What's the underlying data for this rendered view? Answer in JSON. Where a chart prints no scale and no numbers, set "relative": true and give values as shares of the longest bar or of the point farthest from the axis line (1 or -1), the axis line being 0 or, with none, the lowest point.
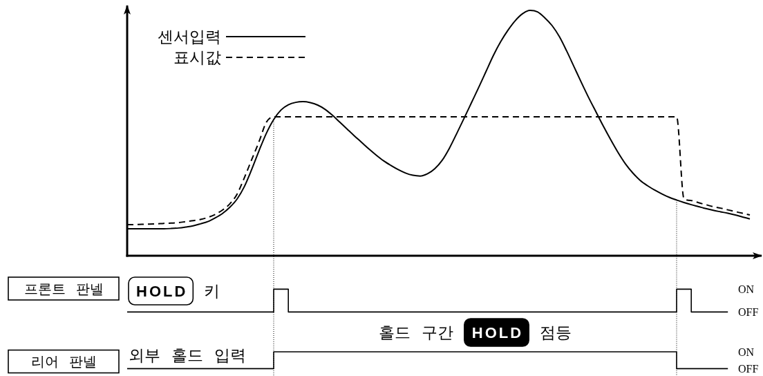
{
  "chart_data": [
    {
      "type": "line",
      "relative": true,
      "legend": "top left",
      "categories": [
        null,
        null,
        null,
        null,
        null,
        null,
        null,
        null,
        null,
        null,
        null,
        null,
        null,
        null,
        null,
        null,
        null,
        null,
        null,
        null,
        null,
        null,
        null,
        null,
        null,
        null,
        null,
        null,
        null,
        null,
        null,
        null,
        null,
        null,
        null,
        null,
        null,
        null,
        null,
        null,
        null,
        null,
        null,
        null,
        null,
        null,
        null,
        null,
        null,
        null,
        null,
        null,
        null,
        null,
        null,
        null,
        null,
        null,
        null,
        null,
        null,
        null,
        null,
        null,
        null,
        null,
        null,
        null,
        null,
        null,
        null,
        null,
        null,
        null,
        null,
        null,
        null,
        null,
        null,
        null,
        null,
        null,
        null,
        null,
        null,
        null
      ],
      "series": [
        {
          "name": "센서입력",
          "color": "#000000",
          "line_style": "solid",
          "values": [
            0.11,
            0.11,
            0.11,
            0.11,
            0.11,
            0.11,
            0.111,
            0.113,
            0.117,
            0.122,
            0.13,
            0.139,
            0.154,
            0.172,
            0.197,
            0.231,
            0.282,
            0.352,
            0.428,
            0.499,
            0.555,
            0.594,
            0.615,
            0.625,
            0.628,
            0.624,
            0.614,
            0.597,
            0.573,
            0.545,
            0.517,
            0.489,
            0.462,
            0.435,
            0.41,
            0.387,
            0.368,
            0.351,
            0.337,
            0.328,
            0.325,
            0.334,
            0.355,
            0.389,
            0.439,
            0.499,
            0.561,
            0.624,
            0.687,
            0.752,
            0.817,
            0.873,
            0.92,
            0.959,
            0.987,
            1.0,
            0.994,
            0.97,
            0.938,
            0.893,
            0.834,
            0.77,
            0.706,
            0.644,
            0.586,
            0.528,
            0.473,
            0.421,
            0.375,
            0.338,
            0.308,
            0.286,
            0.268,
            0.252,
            0.238,
            0.227,
            0.217,
            0.208,
            0.2,
            0.192,
            0.185,
            0.179,
            0.173,
            0.166,
            0.158,
            0.15
          ]
        },
        {
          "name": "표시값",
          "color": "#000000",
          "line_style": "dashed",
          "values": [
            0.127,
            0.127,
            0.128,
            0.129,
            0.13,
            0.132,
            0.133,
            0.135,
            0.139,
            0.143,
            0.148,
            0.156,
            0.168,
            0.186,
            0.211,
            0.251,
            0.318,
            0.392,
            0.465,
            0.544,
            0.566,
            0.566,
            0.566,
            0.566,
            0.566,
            0.566,
            0.566,
            0.566,
            0.566,
            0.566,
            0.566,
            0.566,
            0.566,
            0.566,
            0.566,
            0.566,
            0.566,
            0.566,
            0.566,
            0.566,
            0.566,
            0.566,
            0.566,
            0.566,
            0.566,
            0.566,
            0.566,
            0.566,
            0.566,
            0.566,
            0.566,
            0.566,
            0.566,
            0.566,
            0.566,
            0.566,
            0.566,
            0.566,
            0.566,
            0.566,
            0.566,
            0.566,
            0.566,
            0.566,
            0.566,
            0.566,
            0.566,
            0.566,
            0.566,
            0.566,
            0.566,
            0.566,
            0.566,
            0.566,
            0.566,
            0.566,
            0.233,
            0.225,
            0.216,
            0.208,
            0.2,
            0.194,
            0.187,
            0.18,
            0.173,
            0.166
          ]
        }
      ]
    },
    {
      "type": "step",
      "relative": true,
      "ylabel": "프론트 판넬",
      "categories": [
        null,
        null,
        null,
        null,
        null,
        null,
        null,
        null,
        null,
        null,
        null,
        null,
        null,
        null,
        null,
        null,
        null,
        null,
        null,
        null,
        null,
        null,
        null,
        null,
        null,
        null,
        null,
        null,
        null,
        null,
        null,
        null,
        null,
        null,
        null,
        null,
        null,
        null,
        null,
        null,
        null,
        null,
        null,
        null,
        null,
        null,
        null,
        null,
        null,
        null,
        null,
        null,
        null,
        null,
        null,
        null,
        null,
        null,
        null,
        null,
        null,
        null,
        null,
        null,
        null,
        null,
        null,
        null,
        null,
        null,
        null,
        null,
        null,
        null,
        null,
        null,
        null,
        null,
        null,
        null,
        null,
        null,
        null
      ],
      "series": [
        {
          "name": "HOLD 키",
          "color": "#000000",
          "values": [
            0,
            0,
            0,
            0,
            0,
            0,
            0,
            0,
            0,
            0,
            0,
            0,
            0,
            0,
            0,
            0,
            0,
            0,
            0,
            0,
            1,
            1,
            0,
            0,
            0,
            0,
            0,
            0,
            0,
            0,
            0,
            0,
            0,
            0,
            0,
            0,
            0,
            0,
            0,
            0,
            0,
            0,
            0,
            0,
            0,
            0,
            0,
            0,
            0,
            0,
            0,
            0,
            0,
            0,
            0,
            0,
            0,
            0,
            0,
            0,
            0,
            0,
            0,
            0,
            0,
            0,
            0,
            0,
            0,
            0,
            0,
            0,
            0,
            0,
            0,
            1,
            1,
            0,
            0,
            0,
            0,
            0,
            0
          ]
        }
      ],
      "annotations": [
        "ON",
        "OFF"
      ]
    },
    {
      "type": "step",
      "relative": true,
      "ylabel": "리어 판넬",
      "categories": [
        null,
        null,
        null,
        null,
        null,
        null,
        null,
        null,
        null,
        null,
        null,
        null,
        null,
        null,
        null,
        null,
        null,
        null,
        null,
        null,
        null,
        null,
        null,
        null,
        null,
        null,
        null,
        null,
        null,
        null,
        null,
        null,
        null,
        null,
        null,
        null,
        null,
        null,
        null,
        null,
        null,
        null,
        null,
        null,
        null,
        null,
        null,
        null,
        null,
        null,
        null,
        null,
        null,
        null,
        null,
        null,
        null,
        null,
        null,
        null,
        null,
        null,
        null,
        null,
        null,
        null,
        null,
        null,
        null,
        null,
        null,
        null,
        null,
        null,
        null,
        null,
        null,
        null,
        null,
        null,
        null,
        null,
        null
      ],
      "series": [
        {
          "name": "외부 홀드 입력",
          "color": "#000000",
          "values": [
            0,
            0,
            0,
            0,
            0,
            0,
            0,
            0,
            0,
            0,
            0,
            0,
            0,
            0,
            0,
            0,
            0,
            0,
            0,
            0,
            1,
            1,
            1,
            1,
            1,
            1,
            1,
            1,
            1,
            1,
            1,
            1,
            1,
            1,
            1,
            1,
            1,
            1,
            1,
            1,
            1,
            1,
            1,
            1,
            1,
            1,
            1,
            1,
            1,
            1,
            1,
            1,
            1,
            1,
            1,
            1,
            1,
            1,
            1,
            1,
            1,
            1,
            1,
            1,
            1,
            1,
            1,
            1,
            1,
            1,
            1,
            1,
            1,
            1,
            1,
            0,
            0,
            0,
            0,
            0,
            0,
            0,
            0
          ]
        }
      ],
      "annotations": [
        "홀드 구간 HOLD 점등",
        "ON",
        "OFF"
      ]
    }
  ]
}
